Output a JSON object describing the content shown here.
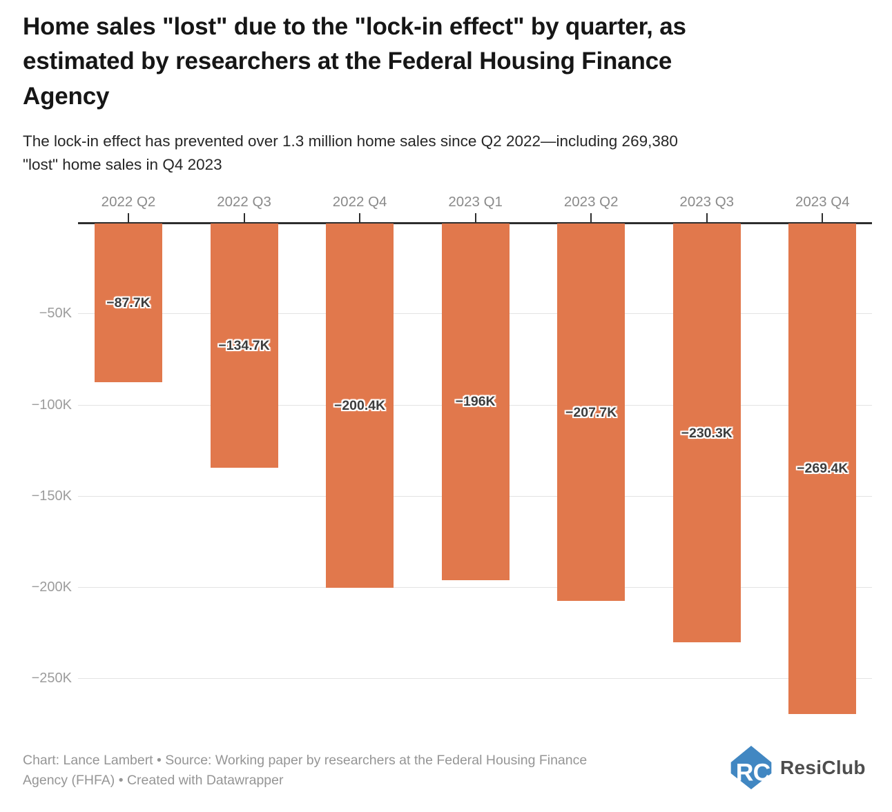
{
  "header": {
    "title": "Home sales \"lost\" due to the \"lock-in effect\" by quarter, as estimated by researchers at the Federal Housing Finance Agency",
    "title_lines": [
      "Home sales \"lost\" due to the \"lock-in effect\" by quarter, as",
      "estimated by researchers at the Federal Housing Finance",
      "Agency"
    ],
    "subtitle": "The lock-in effect has prevented over 1.3 million home sales since Q2 2022—including 269,380 \"lost\" home sales in Q4 2023",
    "subtitle_lines": [
      "The lock-in effect has prevented over 1.3 million home sales since Q2 2022—including 269,380",
      "\"lost\" home sales in Q4 2023"
    ]
  },
  "chart_data": {
    "type": "bar",
    "title": "Home sales \"lost\" due to the \"lock-in effect\" by quarter, as estimated by researchers at the Federal Housing Finance Agency",
    "subtitle": "The lock-in effect has prevented over 1.3 million home sales since Q2 2022—including 269,380 \"lost\" home sales in Q4 2023",
    "categories": [
      "2022 Q2",
      "2022 Q3",
      "2022 Q4",
      "2023 Q1",
      "2023 Q2",
      "2023 Q3",
      "2023 Q4"
    ],
    "values": [
      -87.7,
      -134.7,
      -200.4,
      -196,
      -207.7,
      -230.3,
      -269.4
    ],
    "value_labels": [
      "−87.7K",
      "−134.7K",
      "−200.4K",
      "−196K",
      "−207.7K",
      "−230.3K",
      "−269.4K"
    ],
    "value_unit": "K (thousands of home sales)",
    "xlabel": "",
    "ylabel": "",
    "x_axis_position": "top",
    "y_tick_values": [
      -50,
      -100,
      -150,
      -200,
      -250
    ],
    "y_tick_labels": [
      "−50K",
      "−100K",
      "−150K",
      "−200K",
      "−250K"
    ],
    "ylim": [
      -272,
      0
    ],
    "grid": true,
    "legend": "none",
    "bar_color": "#e1784c",
    "value_label_color": "#3d3d3d"
  },
  "footer": {
    "credit": "Chart: Lance Lambert • Source: Working paper by researchers at the Federal Housing Finance Agency (FHFA) • Created with Datawrapper",
    "credit_lines": [
      "Chart: Lance Lambert • Source: Working paper by researchers at the Federal Housing Finance",
      "Agency (FHFA) • Created with Datawrapper"
    ],
    "logo": {
      "text": "ResiClub",
      "icon": "resiclub-house-icon",
      "icon_color": "#4187c2"
    }
  },
  "colors": {
    "background": "#ffffff",
    "bar": "#e1784c",
    "axis": "#2d2d2d",
    "gridline": "#e3e3e3",
    "y_tick_label": "#9c9c9c",
    "category_label": "#8a8a8a",
    "value_label": "#3d3d3d",
    "title": "#161616",
    "footer_text": "#959595",
    "logo_blue": "#4187c2",
    "logo_text": "#4d4d4d"
  }
}
